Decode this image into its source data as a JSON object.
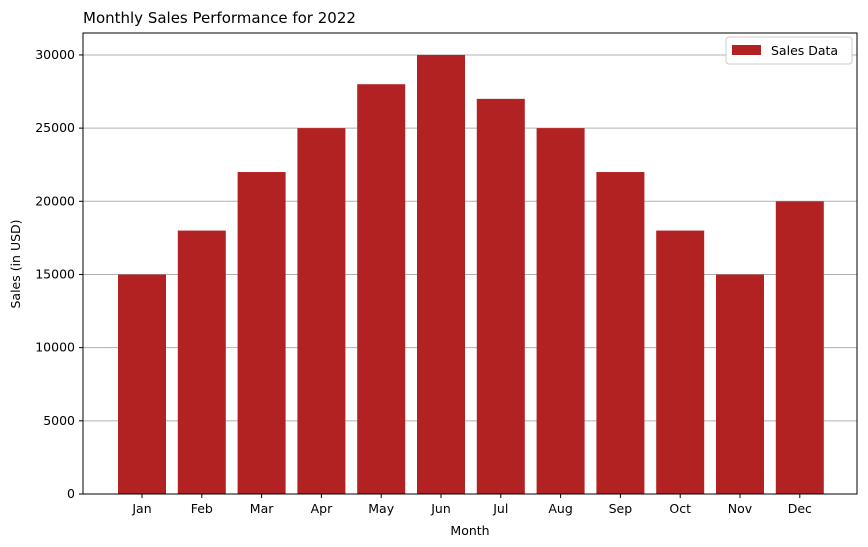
{
  "chart_data": {
    "type": "bar",
    "title": "Monthly Sales Performance for 2022",
    "xlabel": "Month",
    "ylabel": "Sales (in USD)",
    "categories": [
      "Jan",
      "Feb",
      "Mar",
      "Apr",
      "May",
      "Jun",
      "Jul",
      "Aug",
      "Sep",
      "Oct",
      "Nov",
      "Dec"
    ],
    "series": [
      {
        "name": "Sales Data",
        "values": [
          15000,
          18000,
          22000,
          25000,
          28000,
          30000,
          27000,
          25000,
          22000,
          18000,
          15000,
          20000
        ]
      }
    ],
    "ylim": [
      0,
      31500
    ],
    "yticks": [
      0,
      5000,
      10000,
      15000,
      20000,
      25000,
      30000
    ],
    "grid": "y",
    "legend_position": "top-right",
    "colors": {
      "bar": "#b22222",
      "grid": "#b0b0b0",
      "axis": "#000000"
    }
  }
}
